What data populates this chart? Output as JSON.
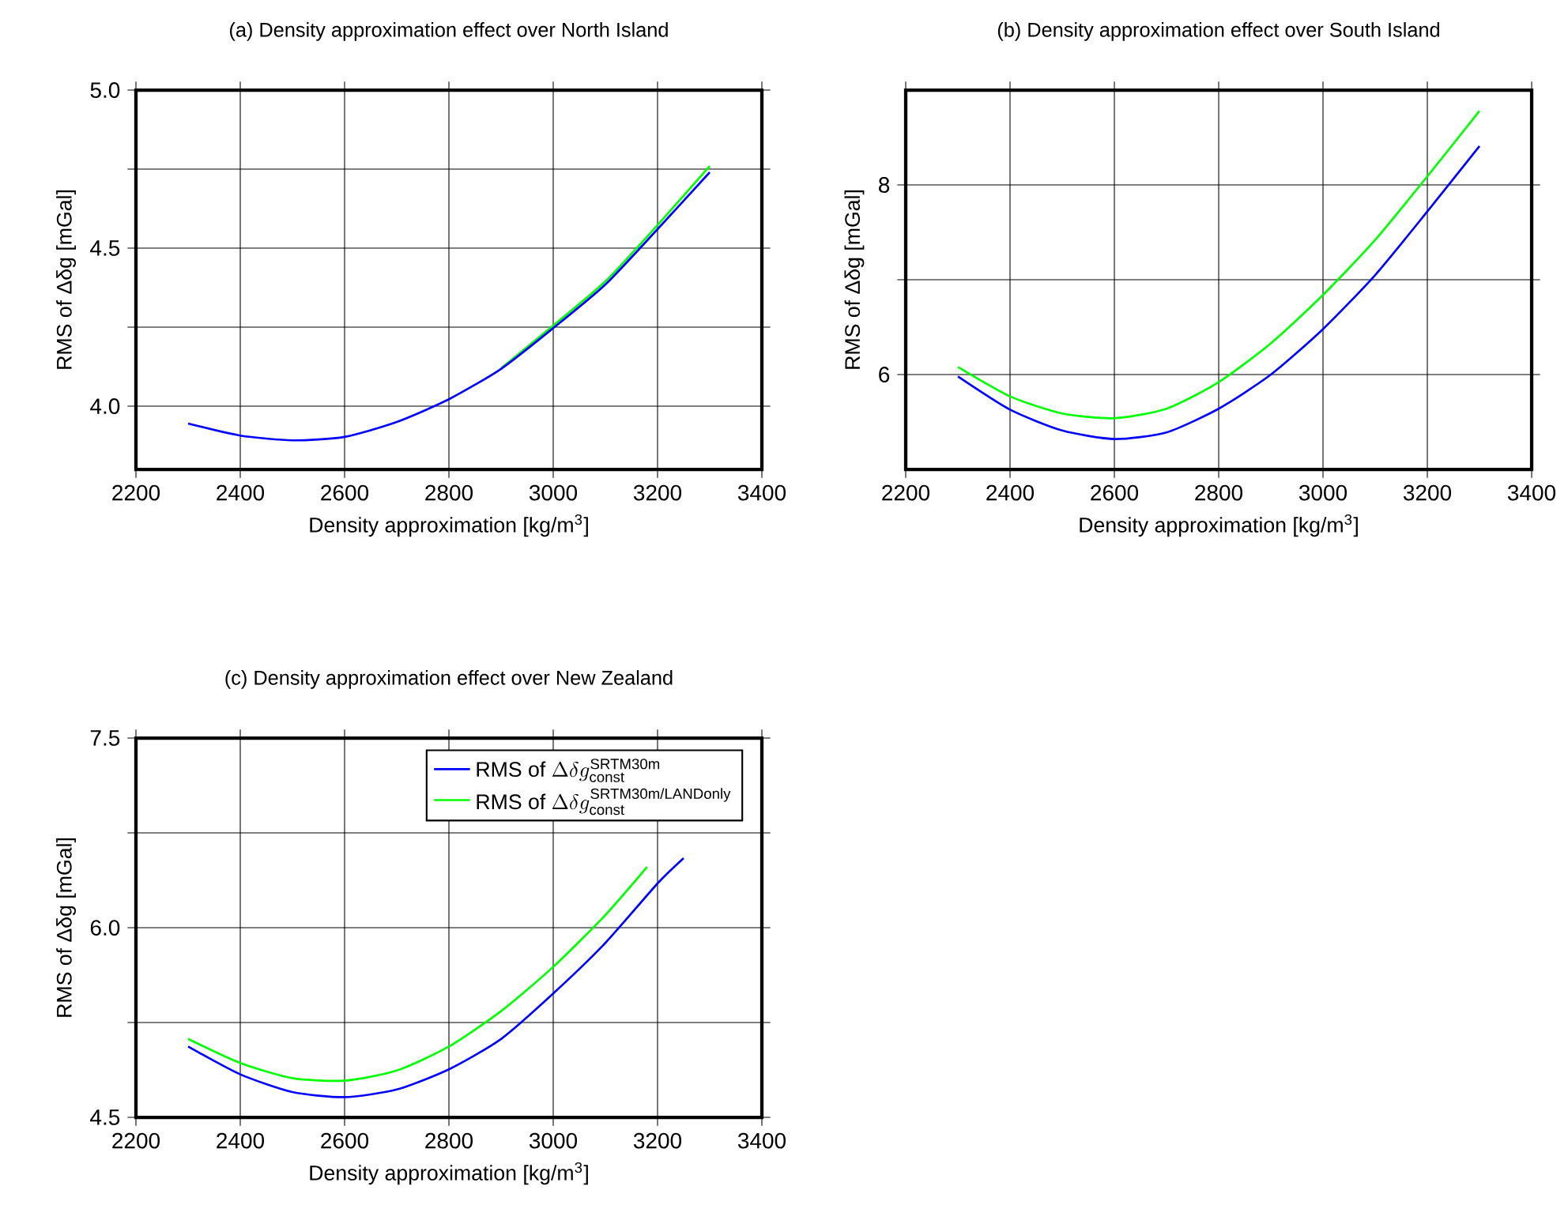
{
  "chart_data": [
    {
      "type": "line",
      "title": "(a) Density approximation effect over North Island",
      "xlabel": "Density approximation [kg/m$^{3}$]",
      "ylabel": "RMS of Δδg [mGal]",
      "x": [
        2300,
        2400,
        2500,
        2600,
        2700,
        2800,
        2900,
        3000,
        3100,
        3200,
        3300
      ],
      "series": [
        {
          "color": "#00ff00",
          "values": [
            null,
            null,
            null,
            null,
            null,
            null,
            4.12,
            4.255,
            4.395,
            4.573,
            4.76
          ]
        },
        {
          "color": "#0000ff",
          "values": [
            3.945,
            3.907,
            3.892,
            3.903,
            3.95,
            4.022,
            4.118,
            4.247,
            4.385,
            4.56,
            4.74
          ]
        }
      ],
      "xlim": [
        2200,
        3400
      ],
      "ylim": [
        3.8,
        5.0
      ],
      "xticks": [
        2200,
        2400,
        2600,
        2800,
        3000,
        3200,
        3400
      ],
      "yticks": [
        {
          "value": 4.0,
          "label": "4.0"
        },
        {
          "value": 4.25,
          "label": null
        },
        4.5,
        {
          "value": 4.75,
          "label": null
        },
        {
          "value": 5.0,
          "label": "5.0"
        }
      ],
      "grid": true
    },
    {
      "type": "line",
      "title": "(b) Density approximation effect over South Island",
      "xlabel": "Density approximation [kg/m$^{3}$]",
      "ylabel": "RMS of Δδg [mGal]",
      "x": [
        2300,
        2400,
        2500,
        2600,
        2700,
        2800,
        2900,
        3000,
        3100,
        3200,
        3300
      ],
      "series": [
        {
          "color": "#0000ff",
          "values": [
            5.98,
            5.63,
            5.41,
            5.32,
            5.39,
            5.64,
            6.0,
            6.48,
            7.05,
            7.72,
            8.41
          ]
        },
        {
          "color": "#00ff00",
          "values": [
            6.08,
            5.77,
            5.59,
            5.54,
            5.64,
            5.92,
            6.33,
            6.84,
            7.42,
            8.09,
            8.78
          ]
        }
      ],
      "xlim": [
        2200,
        3400
      ],
      "ylim": [
        5,
        9
      ],
      "xticks": [
        2200,
        2400,
        2600,
        2800,
        3000,
        3200,
        3400
      ],
      "yticks": [
        6,
        {
          "value": 7,
          "label": null
        },
        8
      ],
      "grid": true
    },
    {
      "type": "line",
      "title": "(c) Density approximation effect over New Zealand",
      "xlabel": "Density approximation [kg/m$^{3}$]",
      "ylabel": "RMS of Δδg [mGal]",
      "series": [
        {
          "name": "\\mbox{RMS of }\\Delta\\delta g^{\\mbox{\\scriptsize SRTM30m}}_{\\mbox{\\scriptsize const}}",
          "color": "#0000ff",
          "x": [
            2300,
            2400,
            2500,
            2600,
            2700,
            2800,
            2900,
            3000,
            3100,
            3200,
            3250
          ],
          "values": [
            5.06,
            4.84,
            4.7,
            4.66,
            4.72,
            4.88,
            5.12,
            5.48,
            5.88,
            6.35,
            6.55
          ]
        },
        {
          "name": "\\mbox{RMS of }\\Delta\\delta g^{\\mbox{\\scriptsize SRTM30m/LANDonly}}_{\\mbox{\\scriptsize const}}",
          "color": "#00ff00",
          "x": [
            2300,
            2400,
            2500,
            2600,
            2700,
            2800,
            2900,
            3000,
            3100,
            3180
          ],
          "values": [
            5.12,
            4.93,
            4.81,
            4.79,
            4.87,
            5.06,
            5.34,
            5.69,
            6.1,
            6.48
          ]
        }
      ],
      "xlim": [
        2200,
        3400
      ],
      "ylim": [
        4.5,
        7.5
      ],
      "xticks": [
        2200,
        2400,
        2600,
        2800,
        3000,
        3200,
        3400
      ],
      "yticks": [
        4.5,
        {
          "value": 5.25,
          "label": null
        },
        {
          "value": 6.0,
          "label": "6.0"
        },
        {
          "value": 6.75,
          "label": null
        },
        7.5
      ],
      "grid": true,
      "legend": "top right"
    }
  ]
}
